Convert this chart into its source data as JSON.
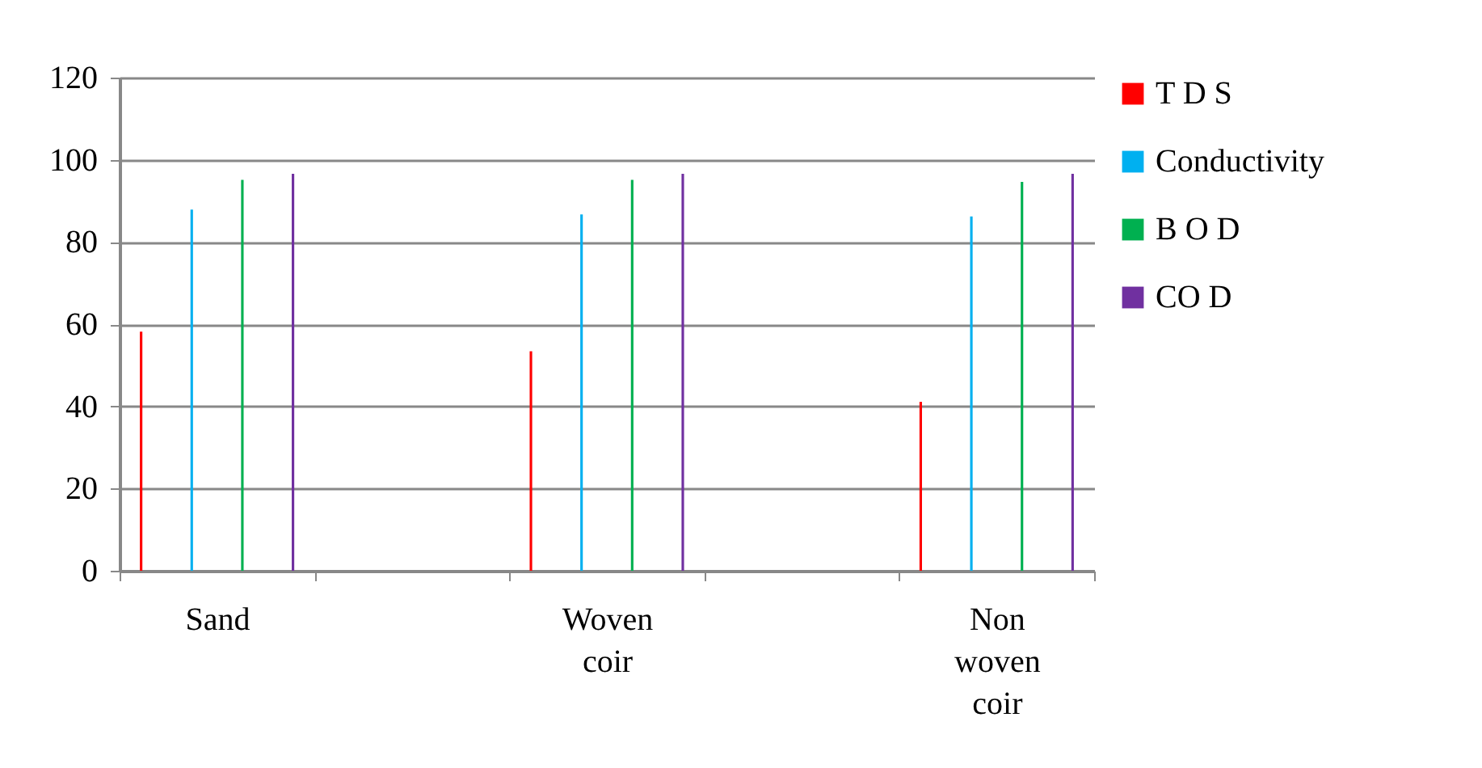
{
  "chart_data": {
    "type": "bar",
    "categories": [
      "Sand",
      null,
      "Woven coir",
      null,
      "Non woven coir"
    ],
    "series": [
      {
        "name": " T D S",
        "color": "#ff0000",
        "values": [
          58.2,
          null,
          53.4,
          null,
          41.1
        ]
      },
      {
        "name": "Conductivity",
        "color": "#00b0f0",
        "values": [
          87.9,
          null,
          86.7,
          null,
          86.2
        ]
      },
      {
        "name": "B O D",
        "color": "#00b050",
        "values": [
          95.1,
          null,
          95.1,
          null,
          94.6
        ]
      },
      {
        "name": "CO D",
        "color": "#7030a0",
        "values": [
          96.6,
          null,
          96.6,
          null,
          96.6
        ]
      }
    ],
    "ylim": [
      0,
      120
    ],
    "yticks": [
      0,
      20,
      40,
      60,
      80,
      100,
      120
    ],
    "grid": "y",
    "legend": "right"
  }
}
